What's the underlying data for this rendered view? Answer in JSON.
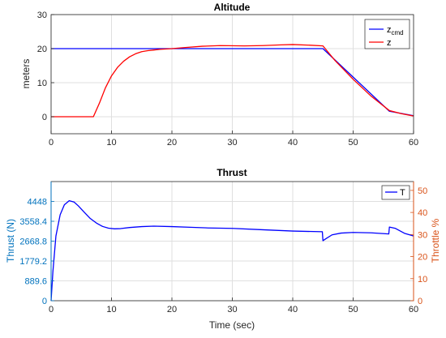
{
  "chart_data": [
    {
      "type": "line",
      "title": "Altitude",
      "xlabel": "",
      "ylabel": "meters",
      "xlim": [
        0,
        60
      ],
      "ylim": [
        -5,
        30
      ],
      "xticks": [
        "0",
        "10",
        "20",
        "30",
        "40",
        "50",
        "60"
      ],
      "yticks": [
        "0",
        "10",
        "20",
        "30"
      ],
      "grid": true,
      "legend": "top-right",
      "series": [
        {
          "name": "z_cmd",
          "legend_main": "z",
          "legend_sub": "cmd",
          "color": "#0000ff",
          "x": [
            0,
            45,
            56,
            60
          ],
          "y": [
            20,
            20,
            1.6,
            0.3
          ]
        },
        {
          "name": "z",
          "legend_main": "z",
          "legend_sub": "",
          "color": "#ff0000",
          "x": [
            0,
            7,
            8,
            9,
            10,
            11,
            12,
            13,
            14,
            15,
            16,
            17,
            18,
            20,
            22,
            25,
            28,
            32,
            35,
            38,
            40,
            43,
            45,
            47,
            50,
            53,
            56,
            58,
            60
          ],
          "y": [
            0,
            0,
            4,
            8.5,
            12,
            14.5,
            16.3,
            17.6,
            18.5,
            19.1,
            19.4,
            19.6,
            19.8,
            20.0,
            20.3,
            20.7,
            20.9,
            20.8,
            20.9,
            21.1,
            21.2,
            21.0,
            20.8,
            16.5,
            11,
            6,
            1.8,
            0.9,
            0.2
          ]
        }
      ]
    },
    {
      "type": "line",
      "title": "Thrust",
      "xlabel": "Time (sec)",
      "ylabel": "Thrust (N)",
      "ylabel_right": "Throttle %",
      "xlim": [
        0,
        60
      ],
      "ylim": [
        0,
        5337.6
      ],
      "y2lim": [
        0,
        54
      ],
      "xticks": [
        "0",
        "10",
        "20",
        "30",
        "40",
        "50",
        "60"
      ],
      "yticks": [
        "0",
        "889.6",
        "1779.2",
        "2668.8",
        "3558.4",
        "4448"
      ],
      "yticks_right": [
        "0",
        "10",
        "20",
        "30",
        "40",
        "50"
      ],
      "grid": true,
      "legend": "top-right",
      "left_axis_color": "#0072bd",
      "right_axis_color": "#d95319",
      "series": [
        {
          "name": "T",
          "color": "#0000ff",
          "x": [
            0,
            0.3,
            0.8,
            1.5,
            2.2,
            3,
            3.8,
            4.5,
            5.5,
            6.5,
            7.5,
            8.5,
            9.5,
            10.5,
            11.5,
            13,
            15,
            17,
            20,
            23,
            26,
            30,
            35,
            40,
            44.9,
            45,
            45.5,
            46.5,
            48,
            50,
            53,
            55.9,
            56,
            57,
            58.5,
            60
          ],
          "y": [
            0,
            1300,
            2900,
            3850,
            4300,
            4480,
            4420,
            4250,
            3960,
            3680,
            3480,
            3330,
            3250,
            3220,
            3230,
            3280,
            3320,
            3340,
            3320,
            3290,
            3260,
            3240,
            3180,
            3120,
            3090,
            2690,
            2780,
            2950,
            3030,
            3060,
            3040,
            2990,
            3300,
            3240,
            3020,
            2900
          ]
        }
      ]
    }
  ]
}
